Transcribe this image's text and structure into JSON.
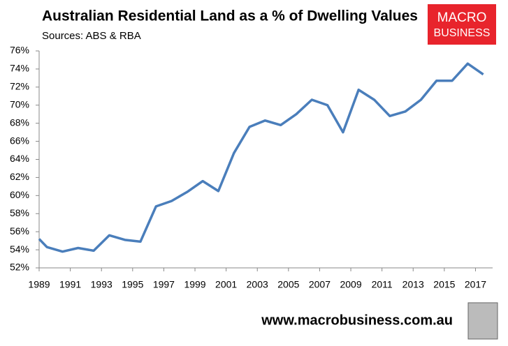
{
  "chart_data": {
    "type": "line",
    "title": "Australian Residential Land as a % of Dwelling Values",
    "subtitle": "Sources: ABS & RBA",
    "x": [
      1989,
      1989.5,
      1990.5,
      1991.5,
      1992.5,
      1993.5,
      1994.5,
      1995.5,
      1996.5,
      1997.5,
      1998.5,
      1999.5,
      2000.5,
      2001.5,
      2002.5,
      2003.5,
      2004.5,
      2005.5,
      2006.5,
      2007.5,
      2008.5,
      2009.5,
      2010.5,
      2011.5,
      2012.5,
      2013.5,
      2014.5,
      2015.5,
      2016.5,
      2017.5
    ],
    "series": [
      {
        "color": "#4a7ebb",
        "values": [
          55.2,
          54.3,
          53.8,
          54.2,
          53.9,
          55.6,
          55.1,
          54.9,
          58.8,
          59.4,
          60.4,
          61.6,
          60.5,
          64.7,
          67.6,
          68.3,
          67.8,
          69.0,
          70.6,
          70.0,
          67.0,
          71.7,
          70.6,
          68.8,
          69.3,
          70.6,
          72.7,
          72.7,
          74.6,
          73.4
        ]
      }
    ],
    "xlim": [
      1989,
      2018.1
    ],
    "xticks": [
      1989,
      1991,
      1993,
      1995,
      1997,
      1999,
      2001,
      2003,
      2005,
      2007,
      2009,
      2011,
      2013,
      2015,
      2017
    ],
    "ylim": [
      52,
      76
    ],
    "yticks": [
      {
        "value": 52,
        "label": "52%"
      },
      {
        "value": 54,
        "label": "54%"
      },
      {
        "value": 56,
        "label": "56%"
      },
      {
        "value": 58,
        "label": "58%"
      },
      {
        "value": 60,
        "label": "60%"
      },
      {
        "value": 62,
        "label": "62%"
      },
      {
        "value": 64,
        "label": "64%"
      },
      {
        "value": 66,
        "label": "66%"
      },
      {
        "value": 68,
        "label": "68%"
      },
      {
        "value": 70,
        "label": "70%"
      },
      {
        "value": 72,
        "label": "72%"
      },
      {
        "value": 74,
        "label": "74%"
      },
      {
        "value": 76,
        "label": "76%"
      }
    ],
    "grid": false
  },
  "branding": {
    "logo_top": "MACRO",
    "logo_bottom": "BUSINESS",
    "website": "www.macrobusiness.com.au"
  }
}
